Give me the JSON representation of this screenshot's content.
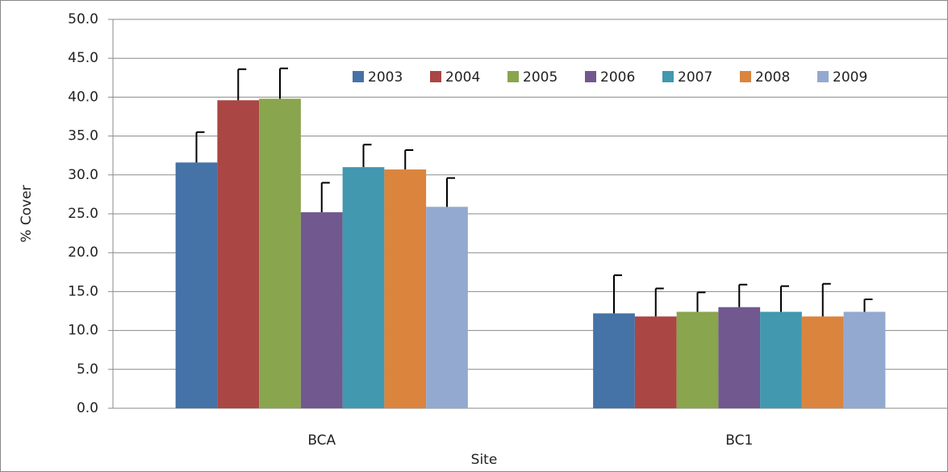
{
  "chart_data": {
    "type": "bar",
    "x_label": "Site",
    "y_label": "% Cover",
    "categories": [
      "BCA",
      "BC1"
    ],
    "series": [
      {
        "name": "2003",
        "color": "#4572a7",
        "values": [
          31.6,
          12.2
        ],
        "errors": [
          3.9,
          4.9
        ]
      },
      {
        "name": "2004",
        "color": "#aa4643",
        "values": [
          39.6,
          11.8
        ],
        "errors": [
          4.0,
          3.6
        ]
      },
      {
        "name": "2005",
        "color": "#89a54e",
        "values": [
          39.8,
          12.4
        ],
        "errors": [
          3.9,
          2.5
        ]
      },
      {
        "name": "2006",
        "color": "#71588f",
        "values": [
          25.2,
          13.0
        ],
        "errors": [
          3.8,
          2.9
        ]
      },
      {
        "name": "2007",
        "color": "#4198af",
        "values": [
          31.0,
          12.4
        ],
        "errors": [
          2.9,
          3.3
        ]
      },
      {
        "name": "2008",
        "color": "#db843d",
        "values": [
          30.7,
          11.8
        ],
        "errors": [
          2.5,
          4.2
        ]
      },
      {
        "name": "2009",
        "color": "#93a9cf",
        "values": [
          25.9,
          12.4
        ],
        "errors": [
          3.7,
          1.6
        ]
      }
    ],
    "ylim": [
      0,
      50
    ],
    "yticks": [
      {
        "value": 0,
        "label": "0.0"
      },
      {
        "value": 5,
        "label": "5.0"
      },
      {
        "value": 10,
        "label": "10.0"
      },
      {
        "value": 15,
        "label": "15.0"
      },
      {
        "value": 20,
        "label": "20.0"
      },
      {
        "value": 25,
        "label": "25.0"
      },
      {
        "value": 30,
        "label": "30.0"
      },
      {
        "value": 35,
        "label": "35.0"
      },
      {
        "value": 40,
        "label": "40.0"
      },
      {
        "value": 45,
        "label": "45.0"
      },
      {
        "value": 50,
        "label": "50.0"
      }
    ],
    "grid": true,
    "legend": "top"
  }
}
